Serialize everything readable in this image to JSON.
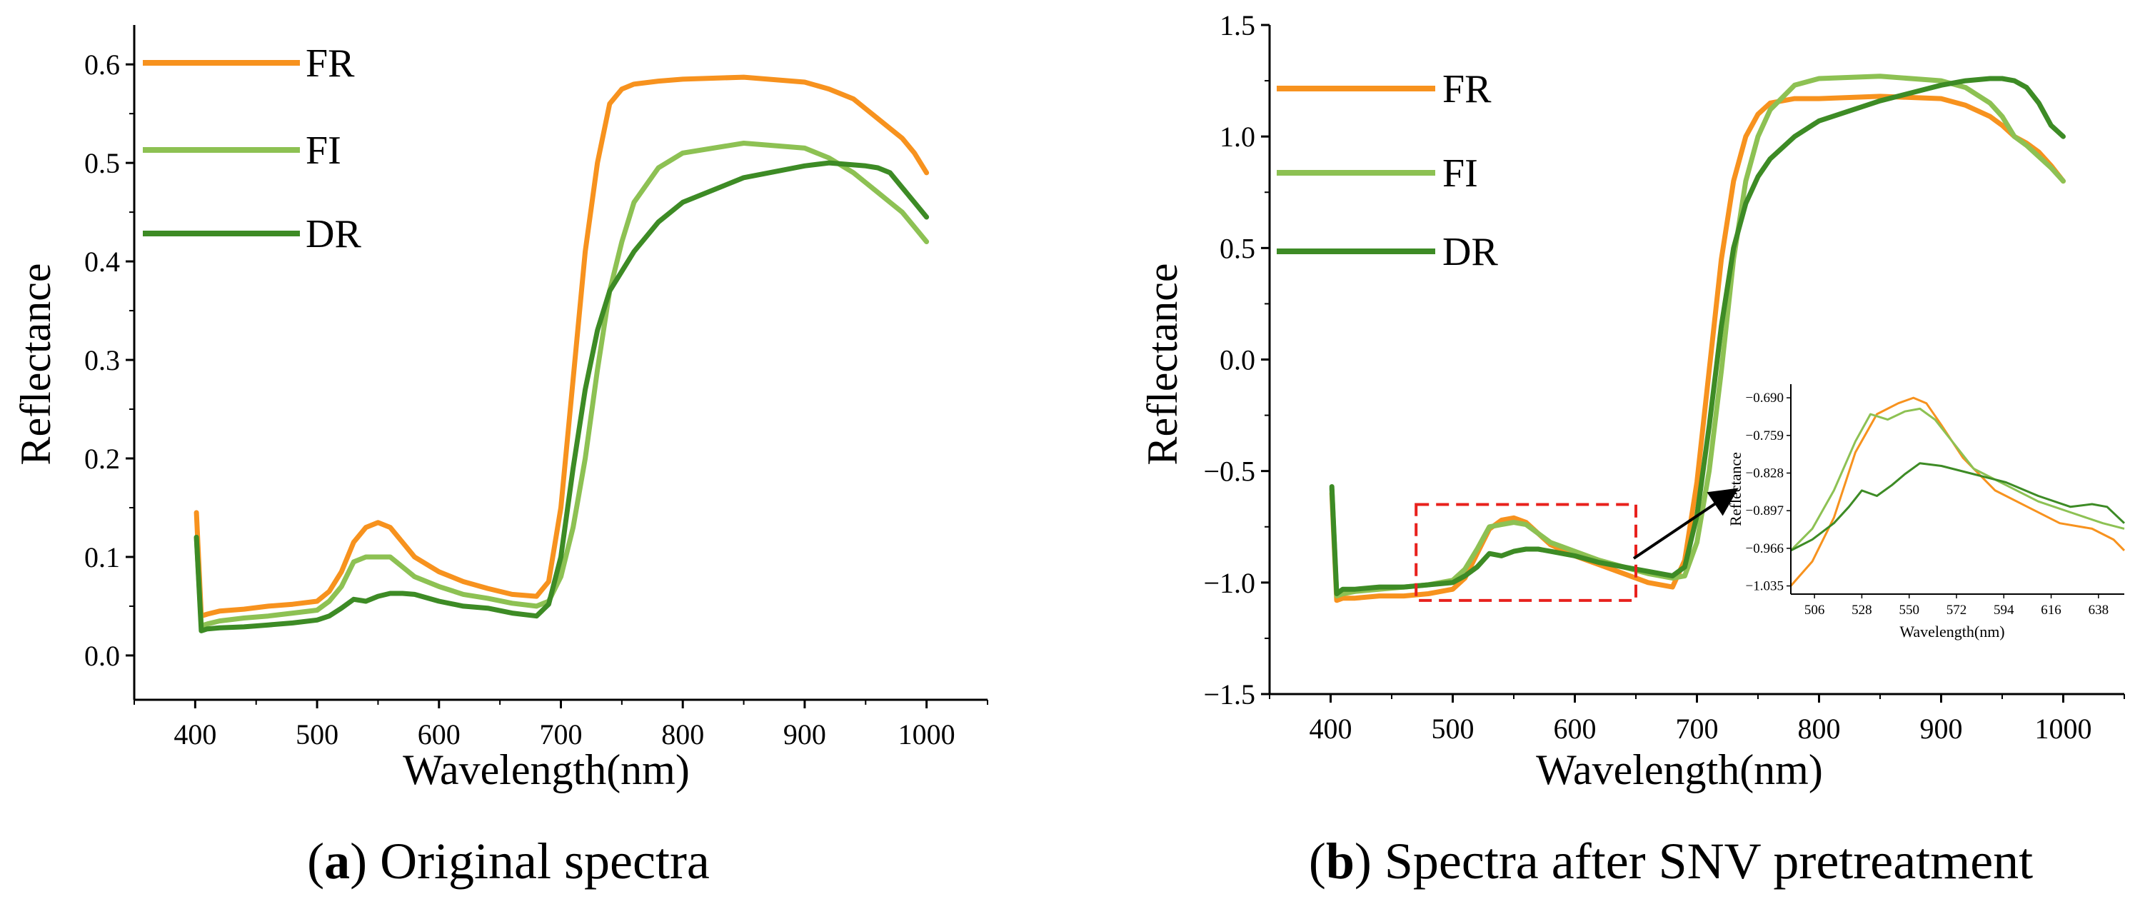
{
  "chart_data": [
    {
      "type": "line",
      "panel": "a",
      "caption_letter": "a",
      "caption_text": " Original spectra",
      "xlabel": "Wavelength(nm)",
      "ylabel": "Reflectance",
      "xlim": [
        350,
        1050
      ],
      "ylim": [
        -0.045,
        0.64
      ],
      "xticks": [
        400,
        500,
        600,
        700,
        800,
        900,
        1000
      ],
      "xtick_labels": [
        "400",
        "500",
        "600",
        "700",
        "800",
        "900",
        "1000"
      ],
      "yticks": [
        0.0,
        0.1,
        0.2,
        0.3,
        0.4,
        0.5,
        0.6
      ],
      "ytick_labels": [
        "0.0",
        "0.1",
        "0.2",
        "0.3",
        "0.4",
        "0.5",
        "0.6"
      ],
      "legend": {
        "placement": "top-left",
        "entries": [
          "FR",
          "FI",
          "DR"
        ]
      },
      "grid": false,
      "series": [
        {
          "name": "FR",
          "color": "#F7921E",
          "x": [
            401,
            405,
            410,
            420,
            440,
            460,
            480,
            500,
            510,
            520,
            530,
            540,
            550,
            560,
            570,
            580,
            600,
            620,
            640,
            660,
            680,
            690,
            700,
            710,
            720,
            730,
            740,
            750,
            760,
            780,
            800,
            850,
            900,
            920,
            940,
            950,
            960,
            970,
            980,
            990,
            1000
          ],
          "y": [
            0.145,
            0.04,
            0.042,
            0.045,
            0.047,
            0.05,
            0.052,
            0.055,
            0.065,
            0.085,
            0.115,
            0.13,
            0.135,
            0.13,
            0.115,
            0.1,
            0.085,
            0.075,
            0.068,
            0.062,
            0.06,
            0.075,
            0.15,
            0.28,
            0.41,
            0.5,
            0.56,
            0.575,
            0.58,
            0.583,
            0.585,
            0.587,
            0.582,
            0.575,
            0.565,
            0.555,
            0.545,
            0.535,
            0.525,
            0.51,
            0.49
          ]
        },
        {
          "name": "FI",
          "color": "#8DC153",
          "x": [
            401,
            405,
            410,
            420,
            440,
            460,
            480,
            500,
            510,
            520,
            530,
            540,
            550,
            560,
            570,
            580,
            600,
            620,
            640,
            660,
            680,
            690,
            700,
            710,
            720,
            730,
            740,
            750,
            760,
            780,
            800,
            850,
            900,
            920,
            940,
            950,
            960,
            970,
            980,
            990,
            1000
          ],
          "y": [
            0.12,
            0.03,
            0.032,
            0.035,
            0.038,
            0.04,
            0.043,
            0.046,
            0.055,
            0.07,
            0.095,
            0.1,
            0.1,
            0.1,
            0.09,
            0.08,
            0.07,
            0.062,
            0.058,
            0.053,
            0.05,
            0.055,
            0.08,
            0.13,
            0.2,
            0.29,
            0.37,
            0.42,
            0.46,
            0.495,
            0.51,
            0.52,
            0.515,
            0.505,
            0.49,
            0.48,
            0.47,
            0.46,
            0.45,
            0.435,
            0.42
          ]
        },
        {
          "name": "DR",
          "color": "#3D8B25",
          "x": [
            401,
            405,
            410,
            420,
            440,
            460,
            480,
            500,
            510,
            520,
            530,
            540,
            550,
            560,
            570,
            580,
            600,
            620,
            640,
            660,
            680,
            690,
            700,
            710,
            720,
            730,
            740,
            750,
            760,
            780,
            800,
            850,
            900,
            920,
            940,
            950,
            960,
            970,
            980,
            990,
            1000
          ],
          "y": [
            0.12,
            0.025,
            0.027,
            0.028,
            0.029,
            0.031,
            0.033,
            0.036,
            0.04,
            0.048,
            0.057,
            0.055,
            0.06,
            0.063,
            0.063,
            0.062,
            0.055,
            0.05,
            0.048,
            0.043,
            0.04,
            0.052,
            0.1,
            0.19,
            0.27,
            0.33,
            0.37,
            0.39,
            0.41,
            0.44,
            0.46,
            0.485,
            0.497,
            0.5,
            0.498,
            0.497,
            0.495,
            0.49,
            0.475,
            0.46,
            0.445
          ]
        }
      ]
    },
    {
      "type": "line",
      "panel": "b",
      "caption_letter": "b",
      "caption_text": " Spectra after SNV pretreatment",
      "xlabel": "Wavelength(nm)",
      "ylabel": "Reflectance",
      "xlim": [
        350,
        1050
      ],
      "ylim": [
        -1.5,
        1.5
      ],
      "xticks": [
        400,
        500,
        600,
        700,
        800,
        900,
        1000
      ],
      "xtick_labels": [
        "400",
        "500",
        "600",
        "700",
        "800",
        "900",
        "1000"
      ],
      "yticks": [
        -1.5,
        -1.0,
        -0.5,
        0.0,
        0.5,
        1.0,
        1.5
      ],
      "ytick_labels": [
        "−1.5",
        "−1.0",
        "−0.5",
        "0.0",
        "0.5",
        "1.0",
        "1.5"
      ],
      "legend": {
        "placement": "top-left",
        "entries": [
          "FR",
          "FI",
          "DR"
        ]
      },
      "grid": false,
      "highlight_box": {
        "x_range": [
          470,
          650
        ],
        "y_range": [
          -1.08,
          -0.65
        ],
        "color": "#E8211D"
      },
      "series": [
        {
          "name": "FR",
          "color": "#F7921E",
          "x": [
            401,
            405,
            410,
            420,
            440,
            460,
            480,
            500,
            510,
            520,
            530,
            540,
            550,
            560,
            570,
            580,
            600,
            620,
            640,
            660,
            680,
            690,
            700,
            710,
            720,
            730,
            740,
            750,
            760,
            780,
            800,
            850,
            900,
            920,
            940,
            950,
            960,
            970,
            980,
            990,
            1000
          ],
          "y": [
            -0.6,
            -1.08,
            -1.07,
            -1.07,
            -1.06,
            -1.06,
            -1.05,
            -1.03,
            -0.98,
            -0.87,
            -0.76,
            -0.72,
            -0.71,
            -0.73,
            -0.78,
            -0.83,
            -0.88,
            -0.92,
            -0.96,
            -1.0,
            -1.02,
            -0.9,
            -0.55,
            -0.05,
            0.45,
            0.8,
            1.0,
            1.1,
            1.15,
            1.17,
            1.17,
            1.18,
            1.17,
            1.14,
            1.09,
            1.05,
            1.0,
            0.97,
            0.93,
            0.87,
            0.8
          ]
        },
        {
          "name": "FI",
          "color": "#8DC153",
          "x": [
            401,
            405,
            410,
            420,
            440,
            460,
            480,
            500,
            510,
            520,
            530,
            540,
            550,
            560,
            570,
            580,
            600,
            620,
            640,
            660,
            680,
            690,
            700,
            710,
            720,
            730,
            740,
            750,
            760,
            780,
            800,
            850,
            900,
            920,
            940,
            950,
            960,
            970,
            980,
            990,
            1000
          ],
          "y": [
            -0.58,
            -1.06,
            -1.05,
            -1.04,
            -1.03,
            -1.02,
            -1.01,
            -0.99,
            -0.94,
            -0.85,
            -0.75,
            -0.74,
            -0.73,
            -0.74,
            -0.78,
            -0.82,
            -0.86,
            -0.9,
            -0.93,
            -0.96,
            -0.98,
            -0.97,
            -0.82,
            -0.5,
            -0.05,
            0.45,
            0.8,
            1.0,
            1.12,
            1.23,
            1.26,
            1.27,
            1.25,
            1.22,
            1.15,
            1.09,
            1.0,
            0.96,
            0.91,
            0.86,
            0.8
          ]
        },
        {
          "name": "DR",
          "color": "#3D8B25",
          "x": [
            401,
            405,
            410,
            420,
            440,
            460,
            480,
            500,
            510,
            520,
            530,
            540,
            550,
            560,
            570,
            580,
            600,
            620,
            640,
            660,
            680,
            690,
            700,
            710,
            720,
            730,
            740,
            750,
            760,
            780,
            800,
            850,
            900,
            920,
            940,
            950,
            960,
            970,
            980,
            990,
            1000
          ],
          "y": [
            -0.57,
            -1.05,
            -1.03,
            -1.03,
            -1.02,
            -1.02,
            -1.01,
            -1.0,
            -0.97,
            -0.93,
            -0.87,
            -0.88,
            -0.86,
            -0.85,
            -0.85,
            -0.86,
            -0.88,
            -0.91,
            -0.93,
            -0.95,
            -0.97,
            -0.93,
            -0.7,
            -0.3,
            0.15,
            0.5,
            0.7,
            0.82,
            0.9,
            1.0,
            1.07,
            1.16,
            1.23,
            1.25,
            1.26,
            1.26,
            1.25,
            1.22,
            1.15,
            1.05,
            1.0
          ]
        }
      ],
      "inset": {
        "xlabel": "Wavelength(nm)",
        "ylabel": "Reflectance",
        "xlim": [
          495,
          650
        ],
        "ylim": [
          -1.05,
          -0.665
        ],
        "xticks": [
          506,
          528,
          550,
          572,
          594,
          616,
          638
        ],
        "xtick_labels": [
          "506",
          "528",
          "550",
          "572",
          "594",
          "616",
          "638"
        ],
        "yticks": [
          -0.69,
          -0.759,
          -0.828,
          -0.897,
          -0.966,
          -1.035
        ],
        "ytick_labels": [
          "−0.690",
          "−0.759",
          "−0.828",
          "−0.897",
          "−0.966",
          "−1.035"
        ],
        "series": [
          {
            "name": "FR",
            "color": "#F7921E",
            "x": [
              495,
              505,
              515,
              525,
              535,
              545,
              552,
              558,
              565,
              575,
              590,
              605,
              620,
              635,
              645,
              650
            ],
            "y": [
              -1.035,
              -0.99,
              -0.91,
              -0.79,
              -0.72,
              -0.7,
              -0.69,
              -0.7,
              -0.74,
              -0.8,
              -0.86,
              -0.89,
              -0.92,
              -0.93,
              -0.95,
              -0.97
            ]
          },
          {
            "name": "FI",
            "color": "#8DC153",
            "x": [
              495,
              505,
              515,
              525,
              532,
              540,
              548,
              555,
              562,
              570,
              580,
              595,
              610,
              625,
              640,
              650
            ],
            "y": [
              -0.97,
              -0.93,
              -0.86,
              -0.77,
              -0.72,
              -0.73,
              -0.715,
              -0.71,
              -0.73,
              -0.77,
              -0.82,
              -0.85,
              -0.88,
              -0.9,
              -0.92,
              -0.93
            ]
          },
          {
            "name": "DR",
            "color": "#3D8B25",
            "x": [
              495,
              505,
              515,
              522,
              528,
              535,
              542,
              548,
              555,
              565,
              580,
              595,
              610,
              625,
              635,
              642,
              650
            ],
            "y": [
              -0.97,
              -0.95,
              -0.92,
              -0.89,
              -0.86,
              -0.87,
              -0.85,
              -0.83,
              -0.81,
              -0.815,
              -0.83,
              -0.845,
              -0.87,
              -0.89,
              -0.885,
              -0.89,
              -0.92
            ]
          }
        ]
      }
    }
  ]
}
